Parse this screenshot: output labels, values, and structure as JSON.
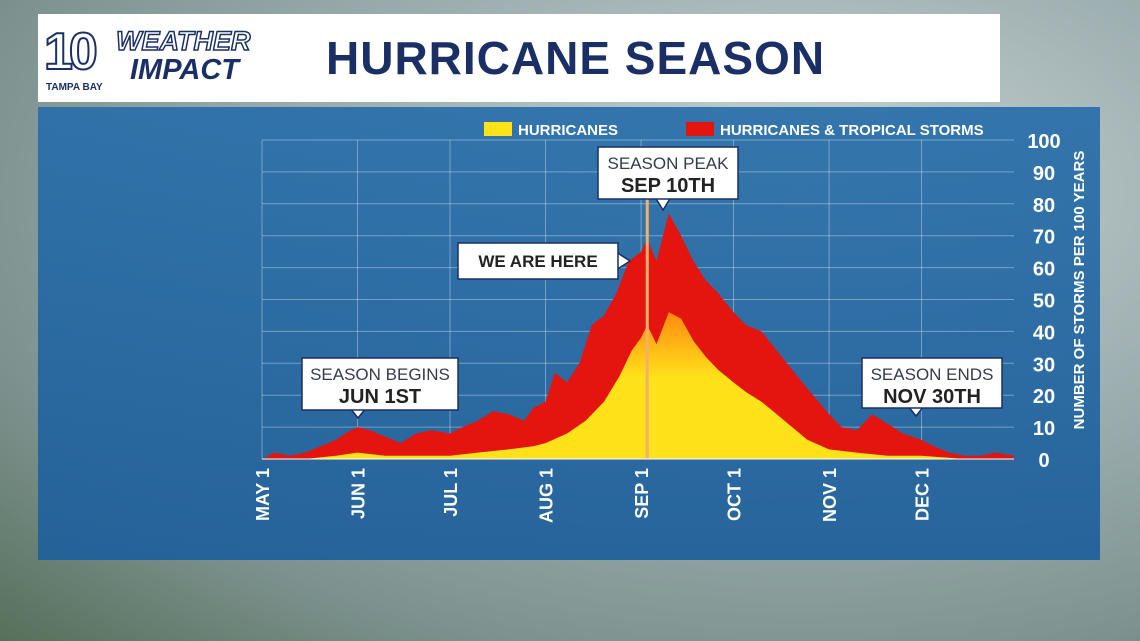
{
  "brand": {
    "logo_number": "10",
    "logo_word1": "WEATHER",
    "logo_word2": "IMPACT",
    "logo_station": "TAMPA BAY"
  },
  "title": "HURRICANE SEASON",
  "colors": {
    "navy": "#1a2f66",
    "panel_blue": "#2a6aa6",
    "red_series": "#e4140f",
    "yellow_series": "#ffe21a",
    "orange_series": "#ff8a10",
    "current_marker": "#f4b06a",
    "axis_text": "#ffffff"
  },
  "chart_data": {
    "type": "area",
    "ylabel": "NUMBER OF STORMS PER 100 YEARS",
    "ylim": [
      0,
      100
    ],
    "yticks": [
      0,
      10,
      20,
      30,
      40,
      50,
      60,
      70,
      80,
      90,
      100
    ],
    "xlim": [
      "May 1",
      "Dec 31"
    ],
    "xticks": [
      "MAY 1",
      "JUN 1",
      "JUL 1",
      "AUG 1",
      "SEP 1",
      "OCT 1",
      "NOV 1",
      "DEC 1"
    ],
    "grid": true,
    "legend_position": "top",
    "series": [
      {
        "name": "HURRICANES & TROPICAL STORMS",
        "color": "#e4140f",
        "points": [
          [
            "May 1",
            0
          ],
          [
            "May 5",
            2
          ],
          [
            "May 10",
            1
          ],
          [
            "May 15",
            2
          ],
          [
            "May 20",
            4
          ],
          [
            "May 25",
            6
          ],
          [
            "May 28",
            8
          ],
          [
            "Jun 1",
            10
          ],
          [
            "Jun 5",
            9
          ],
          [
            "Jun 10",
            7
          ],
          [
            "Jun 15",
            5
          ],
          [
            "Jun 20",
            8
          ],
          [
            "Jun 25",
            9
          ],
          [
            "Jul 1",
            8
          ],
          [
            "Jul 5",
            10
          ],
          [
            "Jul 10",
            12
          ],
          [
            "Jul 15",
            15
          ],
          [
            "Jul 20",
            14
          ],
          [
            "Jul 25",
            12
          ],
          [
            "Jul 28",
            16
          ],
          [
            "Aug 1",
            18
          ],
          [
            "Aug 4",
            27
          ],
          [
            "Aug 8",
            24
          ],
          [
            "Aug 12",
            30
          ],
          [
            "Aug 16",
            42
          ],
          [
            "Aug 20",
            45
          ],
          [
            "Aug 24",
            52
          ],
          [
            "Aug 28",
            62
          ],
          [
            "Sep 1",
            65
          ],
          [
            "Sep 3",
            69
          ],
          [
            "Sep 6",
            62
          ],
          [
            "Sep 10",
            77
          ],
          [
            "Sep 14",
            70
          ],
          [
            "Sep 18",
            62
          ],
          [
            "Sep 22",
            56
          ],
          [
            "Sep 26",
            52
          ],
          [
            "Oct 1",
            46
          ],
          [
            "Oct 5",
            42
          ],
          [
            "Oct 10",
            40
          ],
          [
            "Oct 15",
            34
          ],
          [
            "Oct 20",
            28
          ],
          [
            "Oct 25",
            22
          ],
          [
            "Nov 1",
            14
          ],
          [
            "Nov 5",
            10
          ],
          [
            "Nov 10",
            9
          ],
          [
            "Nov 15",
            14
          ],
          [
            "Nov 20",
            11
          ],
          [
            "Nov 25",
            8
          ],
          [
            "Dec 1",
            6
          ],
          [
            "Dec 5",
            4
          ],
          [
            "Dec 10",
            2
          ],
          [
            "Dec 15",
            1
          ],
          [
            "Dec 20",
            1
          ],
          [
            "Dec 25",
            2
          ],
          [
            "Dec 31",
            1
          ]
        ]
      },
      {
        "name": "HURRICANES",
        "color": "#ffe21a",
        "points": [
          [
            "May 1",
            0
          ],
          [
            "May 15",
            0
          ],
          [
            "May 25",
            1
          ],
          [
            "Jun 1",
            2
          ],
          [
            "Jun 10",
            1
          ],
          [
            "Jun 20",
            1
          ],
          [
            "Jul 1",
            1
          ],
          [
            "Jul 10",
            2
          ],
          [
            "Jul 20",
            3
          ],
          [
            "Jul 28",
            4
          ],
          [
            "Aug 1",
            5
          ],
          [
            "Aug 8",
            8
          ],
          [
            "Aug 14",
            12
          ],
          [
            "Aug 20",
            18
          ],
          [
            "Aug 25",
            26
          ],
          [
            "Aug 29",
            34
          ],
          [
            "Sep 1",
            38
          ],
          [
            "Sep 3",
            42
          ],
          [
            "Sep 6",
            36
          ],
          [
            "Sep 10",
            46
          ],
          [
            "Sep 14",
            44
          ],
          [
            "Sep 18",
            37
          ],
          [
            "Sep 22",
            32
          ],
          [
            "Sep 26",
            28
          ],
          [
            "Oct 1",
            24
          ],
          [
            "Oct 5",
            21
          ],
          [
            "Oct 10",
            18
          ],
          [
            "Oct 15",
            14
          ],
          [
            "Oct 20",
            10
          ],
          [
            "Oct 25",
            6
          ],
          [
            "Nov 1",
            3
          ],
          [
            "Nov 10",
            2
          ],
          [
            "Nov 20",
            1
          ],
          [
            "Dec 1",
            1
          ],
          [
            "Dec 15",
            0
          ],
          [
            "Dec 31",
            0
          ]
        ]
      }
    ],
    "current_date": "Sep 3",
    "annotations": [
      {
        "line1": "SEASON BEGINS",
        "line2": "JUN 1ST",
        "date": "Jun 1"
      },
      {
        "line1": "SEASON PEAK",
        "line2": "SEP 10TH",
        "date": "Sep 10"
      },
      {
        "line1": "",
        "line2": "WE ARE HERE",
        "date": "Sep 3"
      },
      {
        "line1": "SEASON ENDS",
        "line2": "NOV 30TH",
        "date": "Nov 30"
      }
    ]
  }
}
